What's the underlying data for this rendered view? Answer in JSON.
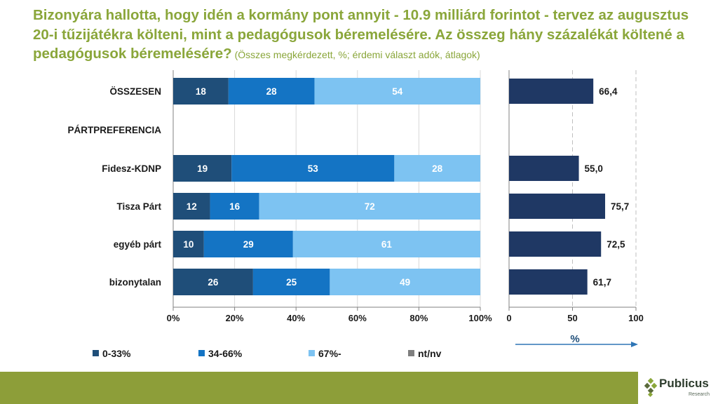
{
  "title": {
    "main": "Bizonyára hallotta, hogy idén a kormány pont annyit - 10.9 milliárd forintot - tervez az augusztus 20-i tűzijátékra költeni, mint a pedagógusok béremelésére. Az összeg hány százalékát költené a pedagógusok béremelésére?",
    "note": " (Összes megkérdezett, %; érdemi választ adók, átlagok)"
  },
  "colors": {
    "c1": "#1f4e79",
    "c2": "#1474c4",
    "c3": "#7dc3f2",
    "c4": "#7f7f7f",
    "avg": "#1f3864",
    "title": "#8aa63a"
  },
  "chart_data": [
    {
      "type": "bar",
      "stacked": true,
      "orientation": "horizontal",
      "categories": [
        "ÖSSZESEN",
        "PÁRTPREFERENCIA",
        "Fidesz-KDNP",
        "Tisza Párt",
        "egyéb párt",
        "bizonytalan"
      ],
      "series": [
        {
          "name": "0-33%",
          "values": [
            18,
            null,
            19,
            12,
            10,
            26
          ]
        },
        {
          "name": "34-66%",
          "values": [
            28,
            null,
            53,
            16,
            29,
            25
          ]
        },
        {
          "name": "67%-",
          "values": [
            54,
            null,
            28,
            72,
            61,
            49
          ]
        },
        {
          "name": "nt/nv",
          "values": [
            0,
            null,
            0,
            0,
            0,
            0
          ]
        }
      ],
      "xlim": [
        0,
        100
      ],
      "xticks": [
        "0%",
        "20%",
        "40%",
        "60%",
        "80%",
        "100%"
      ],
      "legend": "bottom"
    },
    {
      "type": "bar",
      "orientation": "horizontal",
      "categories": [
        "ÖSSZESEN",
        "PÁRTPREFERENCIA",
        "Fidesz-KDNP",
        "Tisza Párt",
        "egyéb párt",
        "bizonytalan"
      ],
      "values": [
        66.4,
        null,
        55.0,
        75.7,
        72.5,
        61.7
      ],
      "labels": [
        "66,4",
        "",
        "55,0",
        "75,7",
        "72,5",
        "61,7"
      ],
      "xlim": [
        0,
        100
      ],
      "xticks": [
        "0",
        "50",
        "100"
      ],
      "xlabel": "%"
    }
  ],
  "logo": {
    "name": "Publicus",
    "sub": "Research"
  }
}
